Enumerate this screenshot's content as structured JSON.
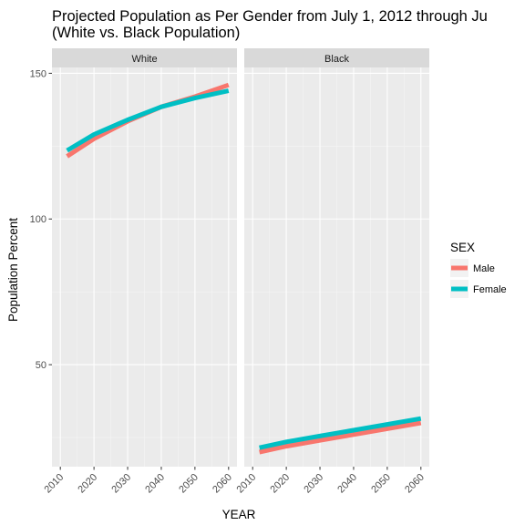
{
  "chart_data": {
    "type": "line",
    "title_lines": [
      "Projected Population as Per Gender from July 1, 2012 through Ju",
      "(White vs. Black Population)"
    ],
    "xlabel": "YEAR",
    "ylabel": "Population Percent",
    "xlim": [
      2010,
      2060
    ],
    "ylim": [
      15,
      152
    ],
    "x_ticks": [
      2010,
      2020,
      2030,
      2040,
      2050,
      2060
    ],
    "y_ticks": [
      50,
      100,
      150
    ],
    "grid": true,
    "legend": {
      "title": "SEX",
      "position": "right",
      "entries": [
        {
          "label": "Male",
          "color": "#F8766D"
        },
        {
          "label": "Female",
          "color": "#00BFC4"
        }
      ]
    },
    "facets": [
      {
        "label": "White",
        "series": [
          {
            "name": "Male",
            "color": "#F8766D",
            "x": [
              2012,
              2020,
              2030,
              2040,
              2050,
              2060
            ],
            "values": [
              121.5,
              127.5,
              133.5,
              138.5,
              142,
              146
            ]
          },
          {
            "name": "Female",
            "color": "#00BFC4",
            "x": [
              2012,
              2020,
              2030,
              2040,
              2050,
              2060
            ],
            "values": [
              123.5,
              129,
              134,
              138.5,
              141.5,
              144
            ]
          }
        ]
      },
      {
        "label": "Black",
        "series": [
          {
            "name": "Male",
            "color": "#F8766D",
            "x": [
              2012,
              2020,
              2030,
              2040,
              2050,
              2060
            ],
            "values": [
              20,
              22,
              24,
              26,
              28,
              30
            ]
          },
          {
            "name": "Female",
            "color": "#00BFC4",
            "x": [
              2012,
              2020,
              2030,
              2040,
              2050,
              2060
            ],
            "values": [
              21.5,
              23.5,
              25.5,
              27.5,
              29.5,
              31.5
            ]
          }
        ]
      }
    ]
  }
}
